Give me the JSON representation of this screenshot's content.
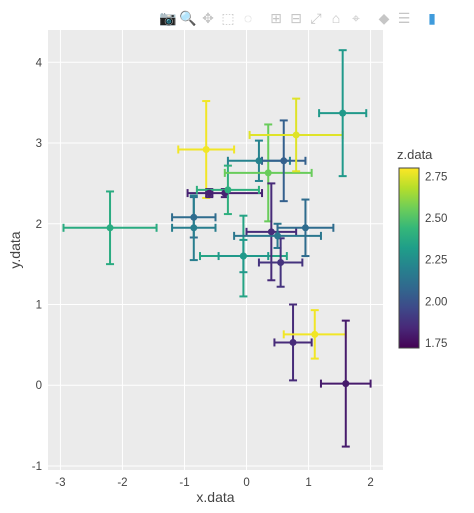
{
  "modebar": {
    "buttons": [
      {
        "name": "camera-icon",
        "glyph": "📷",
        "active": false
      },
      {
        "name": "zoom-icon",
        "glyph": "🔍",
        "active": true
      },
      {
        "name": "pan-icon",
        "glyph": "✥",
        "active": false
      },
      {
        "name": "box-select-icon",
        "glyph": "⬚",
        "active": false
      },
      {
        "name": "lasso-select-icon",
        "glyph": "◌",
        "active": false
      },
      {
        "name": "zoom-in-icon",
        "glyph": "⊞",
        "active": false
      },
      {
        "name": "zoom-out-icon",
        "glyph": "⊟",
        "active": false
      },
      {
        "name": "autoscale-icon",
        "glyph": "⤢",
        "active": false
      },
      {
        "name": "reset-axes-icon",
        "glyph": "⌂",
        "active": false
      },
      {
        "name": "spike-lines-icon",
        "glyph": "⌖",
        "active": false
      },
      {
        "name": "hover-closest-icon",
        "glyph": "◆",
        "active": false
      },
      {
        "name": "hover-compare-icon",
        "glyph": "☰",
        "active": false
      },
      {
        "name": "plotly-logo-icon",
        "glyph": "▮",
        "active": false,
        "brand": true
      }
    ]
  },
  "chart_data": {
    "type": "scatter",
    "xlabel": "x.data",
    "ylabel": "y.data",
    "xlim": [
      -3.2,
      2.2
    ],
    "ylim": [
      -1.05,
      4.4
    ],
    "xticks": [
      -3,
      -2,
      -1,
      0,
      1,
      2
    ],
    "xtick_labels": [
      "-3",
      "-2",
      "-1",
      "0",
      "1",
      "2"
    ],
    "yticks": [
      -1,
      0,
      1,
      2,
      3,
      4
    ],
    "ytick_labels": [
      "-1",
      "0",
      "1",
      "2",
      "3",
      "4"
    ],
    "grid": true,
    "colorbar": {
      "title": "z.data",
      "range": [
        1.72,
        2.8
      ],
      "ticks": [
        1.75,
        2.0,
        2.25,
        2.5,
        2.75
      ],
      "tick_labels": [
        "1.75",
        "2.00",
        "2.25",
        "2.50",
        "2.75"
      ],
      "colorscale": [
        "#440154",
        "#482878",
        "#3e4989",
        "#31688e",
        "#26828e",
        "#1f9e89",
        "#35b779",
        "#6ece58",
        "#b5de2b",
        "#fde725"
      ]
    },
    "points": [
      {
        "x": -2.2,
        "y": 1.95,
        "xerr": 0.75,
        "yerr": 0.45,
        "z": 2.38
      },
      {
        "x": -0.65,
        "y": 2.92,
        "xerr": 0.45,
        "yerr": 0.6,
        "z": 2.78
      },
      {
        "x": -0.6,
        "y": 2.38,
        "xerr": 0.05,
        "yerr": 0.05,
        "z": 1.82
      },
      {
        "x": -0.35,
        "y": 2.38,
        "xerr": 0.6,
        "yerr": 0.05,
        "z": 1.82
      },
      {
        "x": -0.3,
        "y": 2.42,
        "xerr": 0.5,
        "yerr": 0.3,
        "z": 2.4
      },
      {
        "x": -0.85,
        "y": 2.08,
        "xerr": 0.35,
        "yerr": 0.25,
        "z": 2.1
      },
      {
        "x": -0.85,
        "y": 1.95,
        "xerr": 0.35,
        "yerr": 0.4,
        "z": 2.18
      },
      {
        "x": -0.05,
        "y": 1.6,
        "xerr": 0.7,
        "yerr": 0.5,
        "z": 2.35
      },
      {
        "x": -0.05,
        "y": 1.6,
        "xerr": 0.4,
        "yerr": 0.2,
        "z": 2.3
      },
      {
        "x": 0.2,
        "y": 2.78,
        "xerr": 0.5,
        "yerr": 0.25,
        "z": 2.2
      },
      {
        "x": 0.35,
        "y": 2.63,
        "xerr": 0.7,
        "yerr": 0.6,
        "z": 2.55
      },
      {
        "x": 0.4,
        "y": 1.9,
        "xerr": 0.4,
        "yerr": 0.6,
        "z": 1.85
      },
      {
        "x": 0.5,
        "y": 1.85,
        "xerr": 0.7,
        "yerr": 0.15,
        "z": 2.15
      },
      {
        "x": 0.55,
        "y": 1.52,
        "xerr": 0.35,
        "yerr": 0.3,
        "z": 1.88
      },
      {
        "x": 0.6,
        "y": 2.78,
        "xerr": 0.35,
        "yerr": 0.5,
        "z": 2.05
      },
      {
        "x": 0.8,
        "y": 3.1,
        "xerr": 0.75,
        "yerr": 0.45,
        "z": 2.75
      },
      {
        "x": 0.95,
        "y": 1.95,
        "xerr": 0.45,
        "yerr": 0.35,
        "z": 2.1
      },
      {
        "x": 0.75,
        "y": 0.53,
        "xerr": 0.3,
        "yerr": 0.47,
        "z": 1.85
      },
      {
        "x": 1.1,
        "y": 0.63,
        "xerr": 0.5,
        "yerr": 0.3,
        "z": 2.78
      },
      {
        "x": 1.55,
        "y": 3.37,
        "xerr": 0.38,
        "yerr": 0.78,
        "z": 2.3
      },
      {
        "x": 1.6,
        "y": 0.02,
        "xerr": 0.4,
        "yerr": 0.78,
        "z": 1.8
      }
    ]
  }
}
